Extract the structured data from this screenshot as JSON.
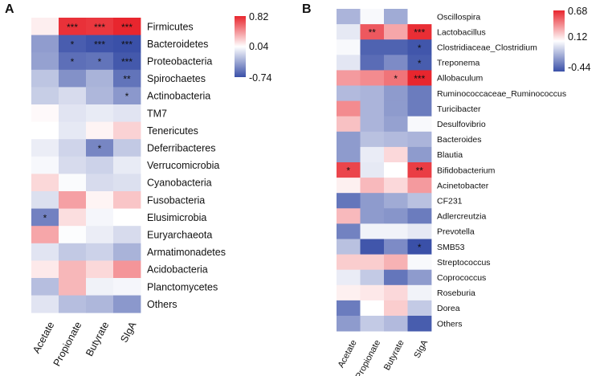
{
  "chart_data": [
    {
      "type": "heatmap",
      "panel_label": "A",
      "columns": [
        "Acetate",
        "Propionate",
        "Butyrate",
        "SIgA"
      ],
      "rows": [
        "Firmicutes",
        "Bacteroidetes",
        "Proteobacteria",
        "Spirochaetes",
        "Actinobacteria",
        "TM7",
        "Tenericutes",
        "Deferribacteres",
        "Verrucomicrobia",
        "Cyanobacteria",
        "Fusobacteria",
        "Elusimicrobia",
        "Euryarchaeota",
        "Armatimonadetes",
        "Acidobacteria",
        "Planctomycetes",
        "Others"
      ],
      "values": [
        [
          0.1,
          0.78,
          0.76,
          0.82
        ],
        [
          -0.4,
          -0.68,
          -0.72,
          -0.74
        ],
        [
          -0.38,
          -0.6,
          -0.58,
          -0.7
        ],
        [
          -0.22,
          -0.45,
          -0.3,
          -0.58
        ],
        [
          -0.18,
          -0.12,
          -0.28,
          -0.42
        ],
        [
          0.06,
          -0.08,
          -0.05,
          -0.08
        ],
        [
          0.04,
          -0.06,
          0.08,
          0.2
        ],
        [
          -0.04,
          -0.15,
          -0.5,
          -0.2
        ],
        [
          0.01,
          -0.12,
          -0.16,
          -0.05
        ],
        [
          0.18,
          0.02,
          -0.12,
          -0.1
        ],
        [
          -0.1,
          0.38,
          0.08,
          0.25
        ],
        [
          -0.52,
          0.16,
          0.0,
          0.04
        ],
        [
          0.36,
          0.03,
          -0.04,
          -0.12
        ],
        [
          -0.08,
          -0.2,
          -0.16,
          -0.3
        ],
        [
          0.12,
          0.3,
          0.18,
          0.42
        ],
        [
          -0.25,
          0.3,
          -0.02,
          0.0
        ],
        [
          -0.08,
          -0.25,
          -0.28,
          -0.42
        ]
      ],
      "significance": [
        [
          "",
          "***",
          "***",
          "***"
        ],
        [
          "",
          "*",
          "***",
          "***"
        ],
        [
          "",
          "*",
          "*",
          "***"
        ],
        [
          "",
          "",
          "",
          "**"
        ],
        [
          "",
          "",
          "",
          "*"
        ],
        [
          "",
          "",
          "",
          ""
        ],
        [
          "",
          "",
          "",
          ""
        ],
        [
          "",
          "",
          "*",
          ""
        ],
        [
          "",
          "",
          "",
          ""
        ],
        [
          "",
          "",
          "",
          ""
        ],
        [
          "",
          "",
          "",
          ""
        ],
        [
          "*",
          "",
          "",
          ""
        ],
        [
          "",
          "",
          "",
          ""
        ],
        [
          "",
          "",
          "",
          ""
        ],
        [
          "",
          "",
          "",
          ""
        ],
        [
          "",
          "",
          "",
          ""
        ],
        [
          "",
          "",
          "",
          ""
        ]
      ],
      "color_scale": {
        "min": -0.74,
        "mid": 0.04,
        "max": 0.82,
        "labels": [
          "0.82",
          "0.04",
          "-0.74"
        ]
      }
    },
    {
      "type": "heatmap",
      "panel_label": "B",
      "columns": [
        "Acetate",
        "Propionate",
        "Butyrate",
        "SIgA"
      ],
      "rows": [
        "Oscillospira",
        "Lactobacillus",
        "Clostridiaceae_Clostridium",
        "Treponema",
        "Allobaculum",
        "Ruminococcaceae_Ruminococcus",
        "Turicibacter",
        "Desulfovibrio",
        "Bacteroides",
        "Blautia",
        "Bifidobacterium",
        "Acinetobacter",
        "CF231",
        "Adlercreutzia",
        "Prevotella",
        "SMB53",
        "Streptococcus",
        "Coprococcus",
        "Roseburia",
        "Dorea",
        "Others"
      ],
      "values": [
        [
          -0.12,
          0.1,
          -0.15,
          0.12
        ],
        [
          0.05,
          0.55,
          0.35,
          0.66
        ],
        [
          0.1,
          -0.38,
          -0.38,
          -0.42
        ],
        [
          0.04,
          -0.35,
          -0.25,
          -0.4
        ],
        [
          0.38,
          0.42,
          0.48,
          0.68
        ],
        [
          -0.1,
          -0.12,
          -0.2,
          -0.3
        ],
        [
          0.42,
          -0.12,
          -0.2,
          -0.3
        ],
        [
          0.28,
          -0.12,
          -0.18,
          0.1
        ],
        [
          -0.2,
          -0.08,
          -0.1,
          -0.12
        ],
        [
          -0.2,
          0.06,
          0.22,
          -0.2
        ],
        [
          0.6,
          0.05,
          0.12,
          0.62
        ],
        [
          0.16,
          0.3,
          0.22,
          0.38
        ],
        [
          -0.32,
          -0.2,
          -0.15,
          -0.08
        ],
        [
          0.3,
          -0.2,
          -0.22,
          -0.3
        ],
        [
          -0.28,
          0.08,
          0.08,
          0.05
        ],
        [
          -0.08,
          -0.42,
          -0.25,
          -0.44
        ],
        [
          0.25,
          0.25,
          0.32,
          0.1
        ],
        [
          0.06,
          -0.05,
          -0.32,
          -0.2
        ],
        [
          0.16,
          0.18,
          0.22,
          0.08
        ],
        [
          -0.3,
          0.12,
          0.25,
          -0.05
        ],
        [
          -0.2,
          -0.05,
          -0.1,
          -0.4
        ]
      ],
      "significance": [
        [
          "",
          "",
          "",
          ""
        ],
        [
          "",
          "**",
          "",
          "***"
        ],
        [
          "",
          "",
          "",
          "*"
        ],
        [
          "",
          "",
          "",
          "*"
        ],
        [
          "",
          "",
          "*",
          "***"
        ],
        [
          "",
          "",
          "",
          ""
        ],
        [
          "",
          "",
          "",
          ""
        ],
        [
          "",
          "",
          "",
          ""
        ],
        [
          "",
          "",
          "",
          ""
        ],
        [
          "",
          "",
          "",
          ""
        ],
        [
          "*",
          "",
          "",
          "**"
        ],
        [
          "",
          "",
          "",
          ""
        ],
        [
          "",
          "",
          "",
          ""
        ],
        [
          "",
          "",
          "",
          ""
        ],
        [
          "",
          "",
          "",
          ""
        ],
        [
          "",
          "",
          "",
          "*"
        ],
        [
          "",
          "",
          "",
          ""
        ],
        [
          "",
          "",
          "",
          ""
        ],
        [
          "",
          "",
          "",
          ""
        ],
        [
          "",
          "",
          "",
          ""
        ],
        [
          "",
          "",
          "",
          ""
        ]
      ],
      "color_scale": {
        "min": -0.44,
        "mid": 0.12,
        "max": 0.68,
        "labels": [
          "0.68",
          "0.12",
          "-0.44"
        ]
      }
    }
  ],
  "colors": {
    "low": "#3a50a8",
    "mid": "#ffffff",
    "high": "#e8262e"
  }
}
